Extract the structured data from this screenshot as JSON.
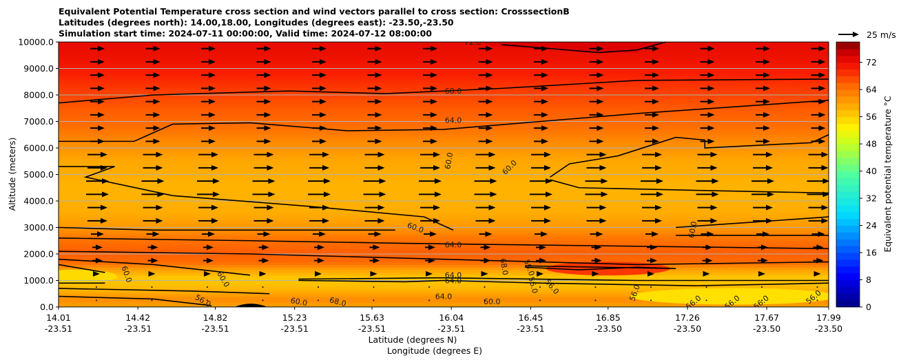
{
  "chart_data": {
    "type": "contour",
    "title_lines": [
      "Equivalent Potential Temperature cross section and wind vectors parallel to cross section: CrosssectionB",
      "Latitudes (degrees north): 14.00,18.00, Longitudes (degrees east): -23.50,-23.50",
      "Simulation start time: 2024-07-11 00:00:00, Valid time: 2024-07-12 08:00:00"
    ],
    "ylabel": "Altitude (meters)",
    "xlabel_lat": "Latitude (degrees N)",
    "xlabel_lon": "Longitude (degrees E)",
    "ylim": [
      0,
      10000
    ],
    "xlim": [
      14.01,
      17.99
    ],
    "yticks": [
      "0.0",
      "1000.0",
      "2000.0",
      "3000.0",
      "4000.0",
      "5000.0",
      "6000.0",
      "7000.0",
      "8000.0",
      "9000.0",
      "10000.0"
    ],
    "xticks": [
      {
        "lat": "14.01",
        "lon": "-23.51"
      },
      {
        "lat": "14.42",
        "lon": "-23.51"
      },
      {
        "lat": "14.82",
        "lon": "-23.51"
      },
      {
        "lat": "15.23",
        "lon": "-23.51"
      },
      {
        "lat": "15.63",
        "lon": "-23.51"
      },
      {
        "lat": "16.04",
        "lon": "-23.51"
      },
      {
        "lat": "16.45",
        "lon": "-23.51"
      },
      {
        "lat": "16.85",
        "lon": "-23.50"
      },
      {
        "lat": "17.26",
        "lon": "-23.50"
      },
      {
        "lat": "17.67",
        "lon": "-23.50"
      },
      {
        "lat": "17.99",
        "lon": "-23.50"
      }
    ],
    "grid": "horizontal",
    "colorbar": {
      "label": "Equivalent potential temperature $^\\circ$C",
      "label_text": "Equivalent potential temperature °C",
      "range": [
        0,
        78
      ],
      "ticks": [
        "0",
        "8",
        "16",
        "24",
        "32",
        "40",
        "48",
        "56",
        "64",
        "72"
      ],
      "colormap": "jet-like (dark blue → cyan → yellow → red → dark red)"
    },
    "quiver_key": {
      "label": "25 m/s",
      "placement": "top-right"
    },
    "contour_levels": [
      56.0,
      60.0,
      64.0,
      68.0,
      72.0
    ],
    "contour_labels": [
      "72.0",
      "68.0",
      "64.0",
      "60.0",
      "60.0",
      "60.0",
      "60.0",
      "64.0",
      "64.0",
      "64.0",
      "64.0",
      "60.0",
      "60.0",
      "60.0",
      "56.0",
      "60.0",
      "68.0",
      "68.0",
      "56.0",
      "56.0",
      "56.0",
      "56.0",
      "56.0",
      "56.0",
      "56.0",
      "56.0"
    ],
    "bands": [
      {
        "alt_top": 10000,
        "alt_bottom": 9000,
        "theta_e": 73,
        "note": "dark red top layer"
      },
      {
        "alt_top": 9000,
        "alt_bottom": 8000,
        "theta_e": 70
      },
      {
        "alt_top": 8000,
        "alt_bottom": 6500,
        "theta_e": 66
      },
      {
        "alt_top": 6500,
        "alt_bottom": 3000,
        "theta_e": 59,
        "note": "mid-level minimum ~58-60"
      },
      {
        "alt_top": 3000,
        "alt_bottom": 1500,
        "theta_e": 65,
        "note": "warm layer, 68 maximum near 16.6N ~1500m"
      },
      {
        "alt_top": 1500,
        "alt_bottom": 0,
        "theta_e": 57,
        "note": "near-surface 56-60, yellow patches"
      }
    ],
    "wind": "westerly vectors along cross section, strongest (~20 m/s) near 3000-5500 m, weak below 1500 m"
  }
}
